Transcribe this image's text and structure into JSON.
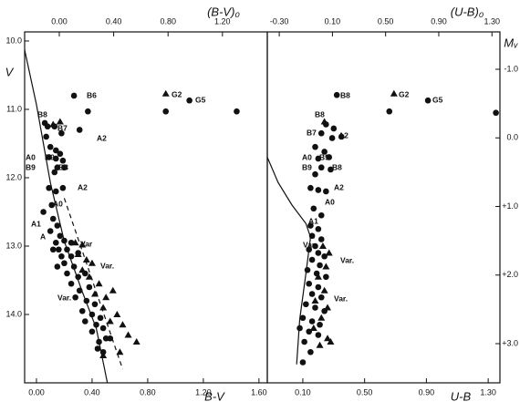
{
  "chart_data": [
    {
      "type": "scatter",
      "xlabel": "B-V",
      "x2label": "(B-V)₀",
      "ylabel": "V",
      "xlim": [
        -0.085,
        1.66
      ],
      "xticks": [
        {
          "value": 0,
          "label": "0.00"
        },
        {
          "value": 0.4,
          "label": "0.40"
        },
        {
          "value": 0.8,
          "label": "0.80"
        },
        {
          "value": 1.2,
          "label": "1.20"
        },
        {
          "value": 1.6,
          "label": "1.60"
        }
      ],
      "x2lim": [
        -0.255,
        1.53
      ],
      "x2ticks": [
        {
          "value": 0,
          "label": "0.00"
        },
        {
          "value": 0.4,
          "label": "0.40"
        },
        {
          "value": 0.8,
          "label": "0.80"
        },
        {
          "value": 1.2,
          "label": "1.20"
        }
      ],
      "ylim": [
        9.867,
        15.0
      ],
      "yticks": [
        {
          "value": 10,
          "label": "10.0"
        },
        {
          "value": 11,
          "label": "11.0"
        },
        {
          "value": 12,
          "label": "12.0"
        },
        {
          "value": 13,
          "label": "13.0"
        },
        {
          "value": 14,
          "label": "14.0"
        }
      ],
      "series": [
        {
          "marker": "circle",
          "color": "#111111",
          "x": [
            0.27,
            0.37,
            0.93,
            1.1,
            1.44,
            0.06,
            0.08,
            0.13,
            0.18,
            0.31,
            0.07,
            0.1,
            0.14,
            0.17,
            0.09,
            0.14,
            0.19,
            0.15,
            0.2,
            0.13,
            0.09,
            0.14,
            0.19,
            0.11,
            0.05,
            0.12,
            0.15,
            0.1,
            0.17,
            0.14,
            0.2,
            0.25,
            0.16,
            0.22,
            0.12,
            0.18,
            0.25,
            0.3,
            0.2,
            0.27,
            0.15,
            0.22,
            0.3,
            0.35,
            0.25,
            0.31,
            0.38,
            0.28,
            0.36,
            0.42,
            0.33,
            0.4,
            0.46,
            0.35,
            0.43,
            0.48,
            0.4,
            0.5,
            0.45,
            0.53,
            0.44,
            0.48
          ],
          "values": [
            10.8,
            11.03,
            11.03,
            10.87,
            11.03,
            11.2,
            11.25,
            11.25,
            11.35,
            11.3,
            11.4,
            11.55,
            11.6,
            11.65,
            11.7,
            11.72,
            11.75,
            11.85,
            11.85,
            11.92,
            12.15,
            12.2,
            12.15,
            12.4,
            12.5,
            12.6,
            12.7,
            12.78,
            12.85,
            12.95,
            12.92,
            12.95,
            13.05,
            13.05,
            13.05,
            13.15,
            13.15,
            13.1,
            13.25,
            13.3,
            13.3,
            13.4,
            13.45,
            13.4,
            13.55,
            13.65,
            13.6,
            13.75,
            13.8,
            13.85,
            13.95,
            14.0,
            14.05,
            14.1,
            14.15,
            14.2,
            14.25,
            14.35,
            14.4,
            14.35,
            14.5,
            14.55
          ]
        },
        {
          "marker": "triangle",
          "color": "#111111",
          "x": [
            0.93,
            0.17,
            0.12,
            0.28,
            0.33,
            0.3,
            0.36,
            0.4,
            0.33,
            0.38,
            0.45,
            0.42,
            0.5,
            0.55,
            0.48,
            0.58,
            0.53,
            0.62,
            0.66,
            0.72,
            0.6,
            0.48
          ],
          "values": [
            10.77,
            11.18,
            11.22,
            12.95,
            12.98,
            13.12,
            13.2,
            13.25,
            13.35,
            13.45,
            13.55,
            13.7,
            13.75,
            13.65,
            13.9,
            14.0,
            14.1,
            14.15,
            14.3,
            14.4,
            14.55,
            14.6
          ]
        }
      ],
      "lines": [
        {
          "style": "solid",
          "x": [
            -0.085,
            0.0,
            0.1,
            0.2,
            0.33,
            0.43,
            0.51
          ],
          "values": [
            10.13,
            10.93,
            12.07,
            12.93,
            13.67,
            14.2,
            15.0
          ]
        },
        {
          "style": "dashed",
          "x": [
            0.2,
            0.62
          ],
          "values": [
            12.3,
            14.8
          ]
        }
      ],
      "annotations": [
        "B6",
        "B8",
        "B7",
        "A2",
        "A0",
        "B9",
        "B9",
        "B8",
        "A2",
        "A0",
        "A1",
        "A",
        "Var",
        "Var.",
        "Var.",
        "G2",
        "G5"
      ]
    },
    {
      "type": "scatter",
      "xlabel": "U-B",
      "x2label": "(U-B)₀",
      "y2label": "Mᵥ",
      "xlim": [
        -0.13,
        1.376
      ],
      "xticks": [
        {
          "value": 0.1,
          "label": "0.10"
        },
        {
          "value": 0.5,
          "label": "0.50"
        },
        {
          "value": 0.9,
          "label": "0.90"
        },
        {
          "value": 1.3,
          "label": "1.30"
        }
      ],
      "x2lim": [
        -0.39,
        1.36
      ],
      "x2ticks": [
        {
          "value": -0.3,
          "label": "-0.30"
        },
        {
          "value": 0.1,
          "label": "0.10"
        },
        {
          "value": 0.5,
          "label": "0.50"
        },
        {
          "value": 0.9,
          "label": "0.90"
        },
        {
          "value": 1.3,
          "label": "1.30"
        }
      ],
      "ylim": [
        9.867,
        15.0
      ],
      "y2lim": [
        -1.545,
        3.571
      ],
      "y2ticks": [
        {
          "value": -1,
          "label": "-1.0"
        },
        {
          "value": 0,
          "label": "0.0"
        },
        {
          "value": 1,
          "label": "+1.0"
        },
        {
          "value": 2,
          "label": "+2.0"
        },
        {
          "value": 3,
          "label": "+3.0"
        }
      ],
      "series": [
        {
          "marker": "circle",
          "color": "#111111",
          "x": [
            0.32,
            0.66,
            0.91,
            1.35,
            0.25,
            0.3,
            0.22,
            0.29,
            0.35,
            0.18,
            0.24,
            0.2,
            0.27,
            0.22,
            0.28,
            0.18,
            0.15,
            0.2,
            0.25,
            0.17,
            0.22,
            0.15,
            0.2,
            0.16,
            0.22,
            0.18,
            0.14,
            0.2,
            0.24,
            0.16,
            0.21,
            0.13,
            0.19,
            0.25,
            0.14,
            0.2,
            0.16,
            0.22,
            0.12,
            0.18,
            0.24,
            0.1,
            0.16,
            0.21,
            0.08,
            0.14,
            0.2,
            0.11,
            0.15,
            0.1
          ],
          "values": [
            10.79,
            11.03,
            10.87,
            11.05,
            11.22,
            11.28,
            11.35,
            11.42,
            11.4,
            11.55,
            11.62,
            11.72,
            11.7,
            11.85,
            11.88,
            11.95,
            12.15,
            12.18,
            12.2,
            12.45,
            12.55,
            12.7,
            12.75,
            12.85,
            12.9,
            13.0,
            13.05,
            13.1,
            13.15,
            13.2,
            13.28,
            13.35,
            13.4,
            13.45,
            13.55,
            13.6,
            13.7,
            13.75,
            13.85,
            13.9,
            13.95,
            14.05,
            14.1,
            14.15,
            14.2,
            14.25,
            14.3,
            14.4,
            14.55,
            14.7
          ]
        },
        {
          "marker": "triangle",
          "color": "#111111",
          "x": [
            0.69,
            0.24,
            0.23,
            0.27,
            0.25,
            0.2,
            0.24,
            0.18,
            0.26,
            0.22,
            0.17,
            0.26,
            0.21,
            0.28
          ],
          "values": [
            10.77,
            11.18,
            13.0,
            13.1,
            13.3,
            13.45,
            13.65,
            13.8,
            13.9,
            14.05,
            14.2,
            14.35,
            14.45,
            14.4
          ]
        }
      ],
      "lines": [
        {
          "style": "solid",
          "x": [
            -0.13,
            -0.06,
            0.03,
            0.12,
            0.15,
            0.12,
            0.08,
            0.06
          ],
          "values": [
            11.7,
            12.07,
            12.4,
            12.67,
            12.87,
            13.4,
            14.07,
            14.73
          ]
        }
      ],
      "annotations": [
        "B8",
        "G2",
        "G5",
        "B8",
        "B7",
        "A2",
        "A0",
        "B9",
        "B9",
        "B8",
        "A2",
        "A0",
        "A1",
        "A",
        "Var",
        "Var.",
        "Var."
      ]
    }
  ]
}
